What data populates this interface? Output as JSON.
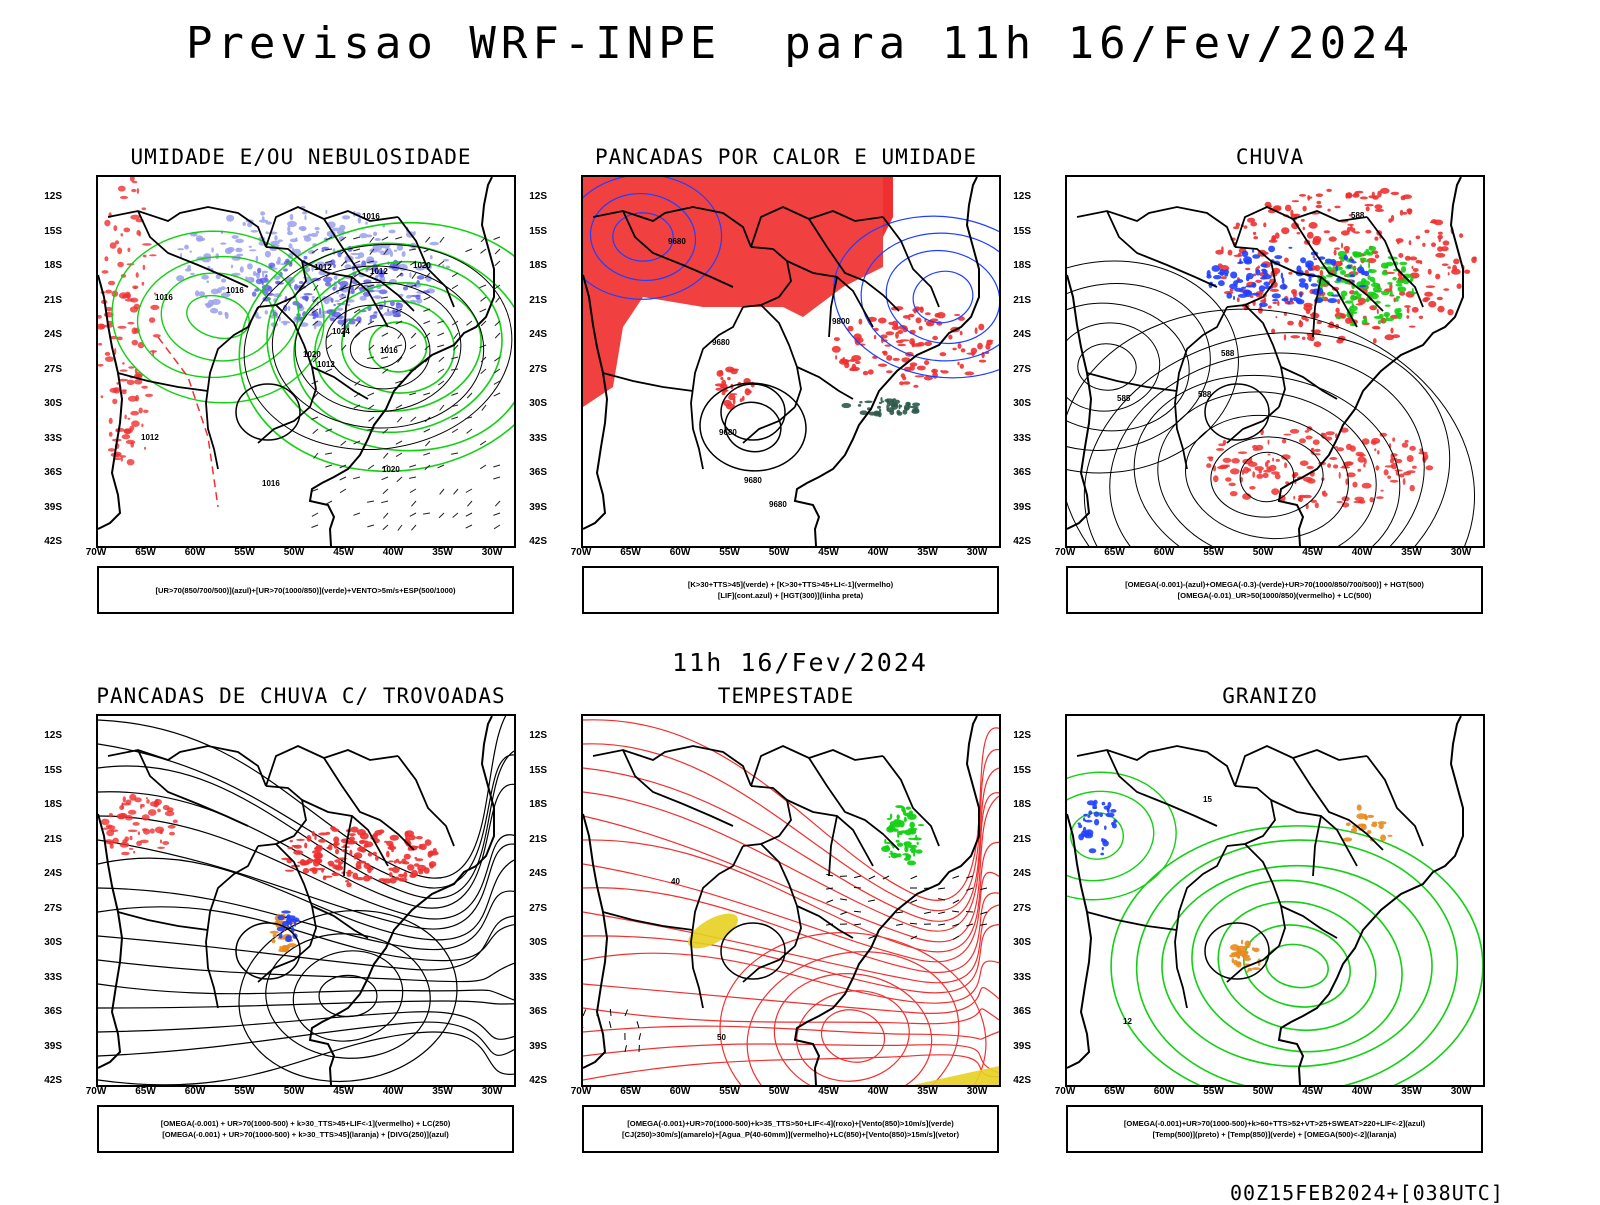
{
  "header": {
    "title": "Previsao WRF-INPE  para 11h 16/Fev/2024",
    "mid_title": "11h 16/Fev/2024",
    "footer": "00Z15FEB2024+[038UTC]"
  },
  "axes": {
    "lat_labels": [
      "12S",
      "15S",
      "18S",
      "21S",
      "24S",
      "27S",
      "30S",
      "33S",
      "36S",
      "39S",
      "42S"
    ],
    "lon_labels": [
      "70W",
      "65W",
      "60W",
      "55W",
      "50W",
      "45W",
      "40W",
      "35W",
      "30W"
    ]
  },
  "panels": [
    {
      "title": "UMIDADE E/OU NEBULOSIDADE",
      "legend": [
        "[UR>70(850/700/500)](azul)+[UR>70(1000/850)](verde)+VENTO>5m/s+ESP(500/1000)"
      ],
      "contour_labels": [
        "1016",
        "1012",
        "1012",
        "1012",
        "1016",
        "1016",
        "1020",
        "1024",
        "1020",
        "1016",
        "1020",
        "1012",
        "1016"
      ]
    },
    {
      "title": "PANCADAS POR CALOR E UMIDADE",
      "legend": [
        "[K>30+TTS>45](verde) + [K>30+TTS>45+LI<-1](vermelho)",
        "[LIF](cont.azul) + [HGT(300)](linha preta)"
      ],
      "contour_labels": [
        "9680",
        "9680",
        "9680",
        "9680",
        "9680",
        "9800"
      ]
    },
    {
      "title": "CHUVA",
      "legend": [
        "[OMEGA(-0.001)-(azul)+OMEGA(-0.3)-(verde)+UR>70(1000/850/700/500)] + HGT(500)",
        "[OMEGA(-0.01)_UR>50(1000/850)(vermelho) + LC(500)"
      ],
      "contour_labels": [
        "588",
        "588",
        "585",
        "588"
      ]
    },
    {
      "title": "PANCADAS DE CHUVA C/ TROVOADAS",
      "legend": [
        "[OMEGA(-0.001) + UR>70(1000-500) + k>30_TTS>45+LIF<-1](vermelho) + LC(250)",
        "[OMEGA(-0.001) + UR>70(1000-500) + k>30_TTS>45](laranja) + [DIVG(250)](azul)"
      ],
      "contour_labels": []
    },
    {
      "title": "TEMPESTADE",
      "legend": [
        "[OMEGA(-0.001)+UR>70(1000-500)+k>35_TTS>50+LIF<-4](roxo)+[Vento(850)>10m/s](verde)",
        "[CJ(250)>30m/s](amarelo)+[Agua_P(40-60mm)](vermelho)+LC(850)+[Vento(850)>15m/s](vetor)"
      ],
      "contour_labels": [
        "50",
        "40"
      ]
    },
    {
      "title": "GRANIZO",
      "legend": [
        "[OMEGA(-0.001)+UR>70(1000-500)+k>60+TTS>52+VT>25+SWEAT>220+LIF<-2](azul)",
        "[Temp(500)](preto) + [Temp(850)](verde) + [OMEGA(500)<-2](laranja)"
      ],
      "contour_labels": [
        "15",
        "12"
      ]
    }
  ],
  "colors": {
    "blue": "#1f3fff",
    "green": "#12d012",
    "red": "#f03030",
    "light_blue": "#9aa0ec",
    "yellow": "#e8d020",
    "orange": "#e88a20",
    "dark_green": "#2d5a4a"
  }
}
